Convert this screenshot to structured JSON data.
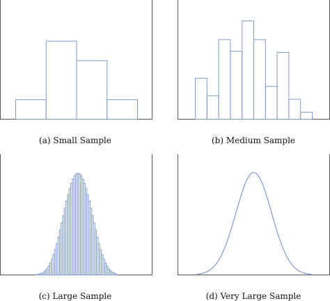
{
  "chart_data": [
    {
      "type": "bar",
      "caption": "(a) Small Sample",
      "values": [
        1,
        4,
        3,
        1
      ],
      "ylim": [
        0,
        6
      ]
    },
    {
      "type": "bar",
      "caption": "(b) Medium Sample",
      "values": [
        3.5,
        2,
        6.8,
        5.8,
        8.4,
        6.8,
        2.8,
        5.7,
        1.7,
        0.6
      ],
      "ylim": [
        0,
        10
      ]
    },
    {
      "type": "bar",
      "caption": "(c) Large Sample",
      "values": [
        0.002,
        0.004,
        0.007,
        0.011,
        0.017,
        0.026,
        0.038,
        0.054,
        0.075,
        0.101,
        0.134,
        0.172,
        0.216,
        0.266,
        0.321,
        0.38,
        0.442,
        0.504,
        0.567,
        0.627,
        0.683,
        0.734,
        0.778,
        0.814,
        0.84,
        0.856,
        0.862,
        0.856,
        0.84,
        0.814,
        0.778,
        0.734,
        0.683,
        0.627,
        0.567,
        0.504,
        0.442,
        0.38,
        0.321,
        0.266,
        0.216,
        0.172,
        0.134,
        0.101,
        0.075,
        0.054,
        0.038,
        0.026,
        0.017,
        0.011
      ],
      "ylim": [
        0,
        1
      ]
    },
    {
      "type": "line",
      "caption": "(d) Very Large Sample",
      "distribution": "normal",
      "mean": 0.5,
      "sd": 0.155,
      "ylim": [
        0,
        1.15
      ]
    }
  ],
  "colors": {
    "bar_stroke": "#7d9bcc",
    "axis": "#555555"
  }
}
